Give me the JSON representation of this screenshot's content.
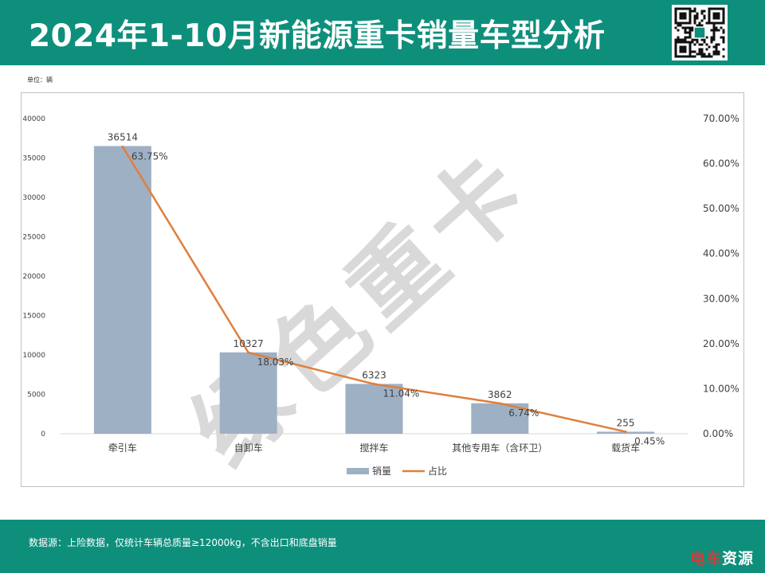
{
  "header": {
    "title": "2024年1-10月新能源重卡销量车型分析"
  },
  "unit_label": "单位：辆",
  "watermark": "绿色重卡",
  "footer": {
    "source": "数据源：上险数据，仅统计车辆总质量≥12000kg，不含出口和底盘销量",
    "brand_a": "电车",
    "brand_b": "资源"
  },
  "colors": {
    "header_bg": "#0e8f7c",
    "bar": "#9eb0c4",
    "line": "#df7f3c"
  },
  "chart_data": {
    "type": "bar",
    "categories": [
      "牵引车",
      "自卸车",
      "搅拌车",
      "其他专用车（含环卫）",
      "载货车"
    ],
    "series": [
      {
        "name": "销量",
        "type": "bar",
        "axis": "left",
        "values": [
          36514,
          10327,
          6323,
          3862,
          255
        ],
        "labels": [
          "36514",
          "10327",
          "6323",
          "3862",
          "255"
        ]
      },
      {
        "name": "占比",
        "type": "line",
        "axis": "right",
        "values": [
          63.75,
          18.03,
          11.04,
          6.74,
          0.45
        ],
        "labels": [
          "63.75%",
          "18.03%",
          "11.04%",
          "6.74%",
          "0.45%"
        ]
      }
    ],
    "y_left": {
      "min": 0,
      "max": 40000,
      "ticks": [
        "0",
        "5000",
        "10000",
        "15000",
        "20000",
        "25000",
        "30000",
        "35000",
        "40000"
      ]
    },
    "y_right": {
      "min": 0,
      "max": 70,
      "ticks": [
        "0.00%",
        "10.00%",
        "20.00%",
        "30.00%",
        "40.00%",
        "50.00%",
        "60.00%",
        "70.00%"
      ]
    },
    "legend": {
      "position": "bottom"
    },
    "grid": false
  }
}
